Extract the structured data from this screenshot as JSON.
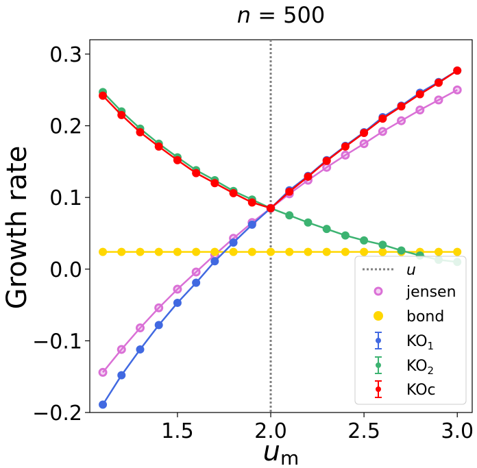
{
  "chart_data": {
    "type": "line",
    "title": "n = 500",
    "title_var": "n",
    "title_eq": " = 500",
    "xlabel": "u",
    "xlabel_sub": "m",
    "ylabel": "Growth rate",
    "xlim": [
      1.03,
      3.08
    ],
    "ylim": [
      -0.2,
      0.32
    ],
    "xticks": [
      1.5,
      2.0,
      2.5,
      3.0
    ],
    "xtick_labels": [
      "1.5",
      "2.0",
      "2.5",
      "3.0"
    ],
    "yticks": [
      -0.2,
      -0.1,
      0.0,
      0.1,
      0.2,
      0.3
    ],
    "ytick_labels": [
      "−0.2",
      "−0.1",
      "0.0",
      "0.1",
      "0.2",
      "0.3"
    ],
    "vline": {
      "x": 2.0,
      "label": "u",
      "color": "#808080"
    },
    "x": [
      1.1,
      1.2,
      1.3,
      1.4,
      1.5,
      1.6,
      1.7,
      1.8,
      1.9,
      2.0,
      2.1,
      2.2,
      2.3,
      2.4,
      2.5,
      2.6,
      2.7,
      2.8,
      2.9,
      3.0
    ],
    "series": [
      {
        "name": "jensen",
        "label_main": "jensen",
        "label_sub": "",
        "color": "#da70d6",
        "style": "line-ring",
        "values": [
          -0.144,
          -0.112,
          -0.082,
          -0.054,
          -0.028,
          -0.004,
          0.02,
          0.043,
          0.065,
          0.085,
          0.105,
          0.124,
          0.142,
          0.159,
          0.175,
          0.192,
          0.207,
          0.222,
          0.236,
          0.25
        ]
      },
      {
        "name": "bond",
        "label_main": "bond",
        "label_sub": "",
        "color": "#ffd700",
        "style": "line-dot",
        "values": [
          0.024,
          0.024,
          0.024,
          0.024,
          0.024,
          0.024,
          0.024,
          0.024,
          0.024,
          0.024,
          0.024,
          0.024,
          0.024,
          0.024,
          0.024,
          0.024,
          0.024,
          0.024,
          0.024,
          0.024
        ]
      },
      {
        "name": "KO1",
        "label_main": "KO",
        "label_sub": "1",
        "color": "#4169e1",
        "style": "errorbar",
        "values": [
          -0.189,
          -0.148,
          -0.112,
          -0.078,
          -0.047,
          -0.019,
          0.011,
          0.037,
          0.062,
          0.085,
          0.11,
          0.13,
          0.152,
          0.172,
          0.191,
          0.212,
          0.228,
          0.246,
          0.261,
          0.277
        ]
      },
      {
        "name": "KO2",
        "label_main": "KO",
        "label_sub": "2",
        "color": "#3cb371",
        "style": "errorbar",
        "values": [
          0.247,
          0.22,
          0.196,
          0.175,
          0.156,
          0.138,
          0.124,
          0.109,
          0.097,
          0.085,
          0.075,
          0.065,
          0.056,
          0.047,
          0.04,
          0.034,
          0.026,
          0.019,
          0.013,
          0.01
        ]
      },
      {
        "name": "KOc",
        "label_main": "KOc",
        "label_sub": "",
        "color": "#ff0000",
        "style": "errorbar",
        "values": [
          0.242,
          0.215,
          0.191,
          0.171,
          0.152,
          0.134,
          0.12,
          0.106,
          0.093,
          0.085,
          0.108,
          0.129,
          0.151,
          0.171,
          0.19,
          0.21,
          0.227,
          0.244,
          0.26,
          0.277
        ]
      }
    ],
    "legend_position": "bottom-right"
  }
}
